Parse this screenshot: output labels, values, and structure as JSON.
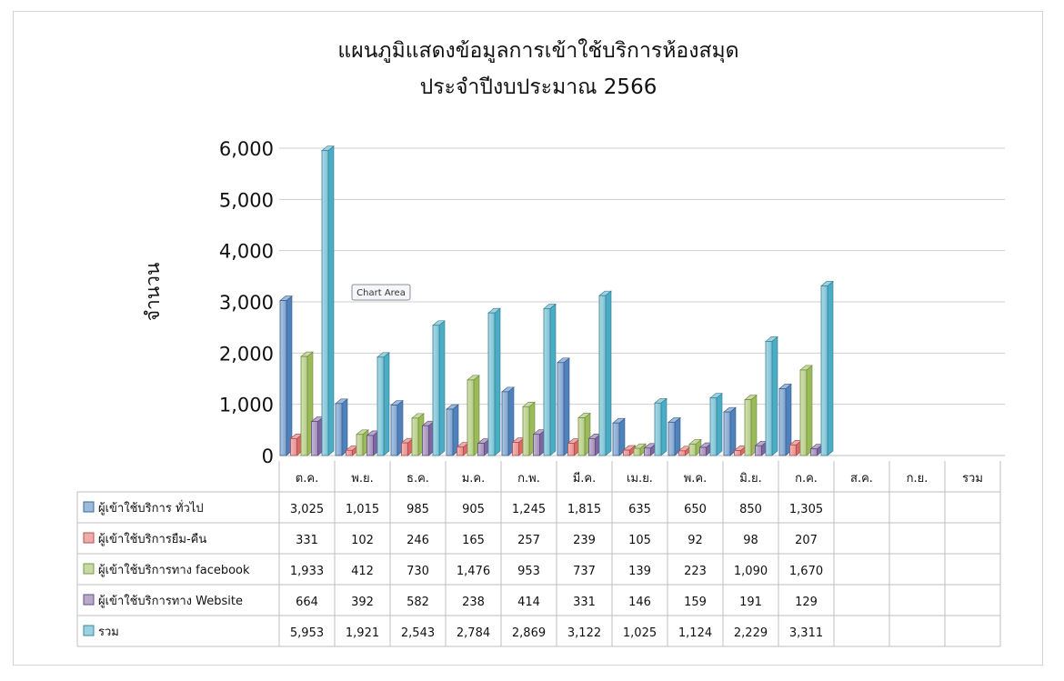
{
  "chart_data": {
    "type": "bar",
    "title": "แผนภูมิแสดงข้อมูลการเข้าใช้บริการห้องสมุด",
    "subtitle": "ประจำปีงบประมาณ 2566",
    "ylabel": "จำนวน",
    "xlabel": "",
    "ylim": [
      0,
      6000
    ],
    "yticks": [
      "0",
      "1,000",
      "2,000",
      "3,000",
      "4,000",
      "5,000",
      "6,000"
    ],
    "categories": [
      "ต.ค.",
      "พ.ย.",
      "ธ.ค.",
      "ม.ค.",
      "ก.พ.",
      "มี.ค.",
      "เม.ย.",
      "พ.ค.",
      "มิ.ย.",
      "ก.ค.",
      "ส.ค.",
      "ก.ย.",
      "รวม"
    ],
    "series": [
      {
        "name": "ผู้เข้าใช้บริการ ทั่วไป",
        "color": "#4f81bd",
        "values": [
          3025,
          1015,
          985,
          905,
          1245,
          1815,
          635,
          650,
          850,
          1305,
          null,
          null,
          null
        ],
        "labels": [
          "3,025",
          "1,015",
          "985",
          "905",
          "1,245",
          "1,815",
          "635",
          "650",
          "850",
          "1,305",
          "",
          "",
          ""
        ]
      },
      {
        "name": "ผู้เข้าใช้บริการยืม-คืน",
        "color": "#e06666",
        "values": [
          331,
          102,
          246,
          165,
          257,
          239,
          105,
          92,
          98,
          207,
          null,
          null,
          null
        ],
        "labels": [
          "331",
          "102",
          "246",
          "165",
          "257",
          "239",
          "105",
          "92",
          "98",
          "207",
          "",
          "",
          ""
        ]
      },
      {
        "name": "ผู้เข้าใช้บริการทาง facebook",
        "color": "#9bbb59",
        "values": [
          1933,
          412,
          730,
          1476,
          953,
          737,
          139,
          223,
          1090,
          1670,
          null,
          null,
          null
        ],
        "labels": [
          "1,933",
          "412",
          "730",
          "1,476",
          "953",
          "737",
          "139",
          "223",
          "1,090",
          "1,670",
          "",
          "",
          ""
        ]
      },
      {
        "name": "ผู้เข้าใช้บริการทาง Website",
        "color": "#8064a2",
        "values": [
          664,
          392,
          582,
          238,
          414,
          331,
          146,
          159,
          191,
          129,
          null,
          null,
          null
        ],
        "labels": [
          "664",
          "392",
          "582",
          "238",
          "414",
          "331",
          "146",
          "159",
          "191",
          "129",
          "",
          "",
          ""
        ]
      },
      {
        "name": "รวม",
        "color": "#4bacc6",
        "values": [
          5953,
          1921,
          2543,
          2784,
          2869,
          3122,
          1025,
          1124,
          2229,
          3311,
          null,
          null,
          null
        ],
        "labels": [
          "5,953",
          "1,921",
          "2,543",
          "2,784",
          "2,869",
          "3,122",
          "1,025",
          "1,124",
          "2,229",
          "3,311",
          "",
          "",
          ""
        ]
      }
    ],
    "grid": true,
    "legend": "data-table-left"
  },
  "tooltip": {
    "label": "Chart Area"
  }
}
